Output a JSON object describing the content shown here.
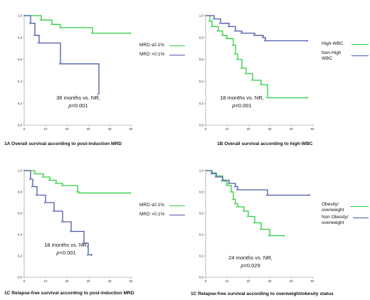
{
  "panels": [
    {
      "caption": "1A Overall survival according to post-induction MRD",
      "annotation": {
        "line1": "36 months vs. NR,",
        "p_label": "p",
        "p_value": "=0.001"
      },
      "legend": [
        {
          "label": "MRD ≤0.1%",
          "color": "#2ecc40"
        },
        {
          "label": "MRD >0.1%",
          "color": "#4a5aa8"
        }
      ]
    },
    {
      "caption": "1B Overall survival according to high-WBC",
      "annotation": {
        "line1": "18 months vs. NR,",
        "p_label": "p",
        "p_value": "=0.001"
      },
      "legend": [
        {
          "label": "High-WBC",
          "color": "#2ecc40"
        },
        {
          "label": "Non-High WBC",
          "color": "#4a5aa8"
        }
      ]
    },
    {
      "caption": "1C Relapse-free survival according to post-induction MRD",
      "annotation": {
        "line1": "18 months vs. NR,",
        "p_label": "p",
        "p_value": "<0.001"
      },
      "legend": [
        {
          "label": "MRD ≤0.1%",
          "color": "#2ecc40"
        },
        {
          "label": "MRD >0.1%",
          "color": "#4a5aa8"
        }
      ]
    },
    {
      "caption": "1C Relapse-free survival according to overweight/obesity status",
      "annotation": {
        "line1": "24 months vs. NR,",
        "p_label": "p",
        "p_value": "=0.029"
      },
      "legend": [
        {
          "label": "Obesity/ overweight",
          "color": "#2ecc40"
        },
        {
          "label": "Non Obesity/ overweight",
          "color": "#4a5aa8"
        }
      ]
    }
  ],
  "chart_data": [
    {
      "type": "line",
      "xlim": [
        0,
        50
      ],
      "ylim": [
        0,
        1.0
      ],
      "x_ticks": [
        "0",
        "10",
        "20",
        "30",
        "40",
        "50"
      ],
      "y_ticks": [
        "0,0",
        "0,2",
        "0,4",
        "0,6",
        "0,8",
        "1,0"
      ],
      "series": [
        {
          "name": "MRD ≤0.1%",
          "color": "#2ecc40",
          "steps": [
            [
              0,
              1.0
            ],
            [
              8,
              0.96
            ],
            [
              13,
              0.92
            ],
            [
              17,
              0.89
            ],
            [
              32,
              0.84
            ],
            [
              50,
              0.84
            ]
          ]
        },
        {
          "name": "MRD >0.1%",
          "color": "#4a5aa8",
          "steps": [
            [
              0,
              1.0
            ],
            [
              3,
              0.93
            ],
            [
              5,
              0.82
            ],
            [
              7,
              0.75
            ],
            [
              17,
              0.56
            ],
            [
              35,
              0.28
            ]
          ]
        }
      ]
    },
    {
      "type": "line",
      "xlim": [
        0,
        50
      ],
      "ylim": [
        0,
        1.0
      ],
      "x_ticks": [
        "0",
        "10",
        "20",
        "30",
        "40",
        "50"
      ],
      "y_ticks": [
        "0,0",
        "0,2",
        "0,4",
        "0,6",
        "0,8",
        "1,0"
      ],
      "series": [
        {
          "name": "High-WBC",
          "color": "#2ecc40",
          "steps": [
            [
              0,
              1.0
            ],
            [
              2,
              0.95
            ],
            [
              3,
              0.9
            ],
            [
              6,
              0.86
            ],
            [
              8,
              0.82
            ],
            [
              10,
              0.79
            ],
            [
              13,
              0.73
            ],
            [
              14,
              0.65
            ],
            [
              15,
              0.6
            ],
            [
              17,
              0.52
            ],
            [
              19,
              0.47
            ],
            [
              22,
              0.41
            ],
            [
              26,
              0.37
            ],
            [
              29,
              0.25
            ],
            [
              48,
              0.25
            ]
          ]
        },
        {
          "name": "Non-High WBC",
          "color": "#4a5aa8",
          "steps": [
            [
              0,
              1.0
            ],
            [
              4,
              0.97
            ],
            [
              7,
              0.93
            ],
            [
              11,
              0.9
            ],
            [
              14,
              0.86
            ],
            [
              17,
              0.84
            ],
            [
              23,
              0.82
            ],
            [
              27,
              0.8
            ],
            [
              28,
              0.77
            ],
            [
              48,
              0.77
            ]
          ]
        }
      ]
    },
    {
      "type": "line",
      "xlim": [
        0,
        50
      ],
      "ylim": [
        0,
        1.0
      ],
      "x_ticks": [
        "0",
        "10",
        "20",
        "30",
        "40",
        "50"
      ],
      "y_ticks": [
        "0,0",
        "0,2",
        "0,4",
        "0,6",
        "0,8",
        "1,0"
      ],
      "series": [
        {
          "name": "MRD ≤0.1%",
          "color": "#2ecc40",
          "steps": [
            [
              0,
              1.0
            ],
            [
              5,
              0.97
            ],
            [
              9,
              0.94
            ],
            [
              12,
              0.91
            ],
            [
              15,
              0.88
            ],
            [
              18,
              0.86
            ],
            [
              25,
              0.8
            ],
            [
              26,
              0.79
            ],
            [
              50,
              0.79
            ]
          ]
        },
        {
          "name": "MRD >0.1%",
          "color": "#4a5aa8",
          "steps": [
            [
              0,
              1.0
            ],
            [
              3,
              0.92
            ],
            [
              4,
              0.85
            ],
            [
              6,
              0.77
            ],
            [
              10,
              0.7
            ],
            [
              14,
              0.62
            ],
            [
              18,
              0.52
            ],
            [
              22,
              0.43
            ],
            [
              28,
              0.32
            ],
            [
              30,
              0.21
            ],
            [
              32,
              0.21
            ]
          ]
        }
      ]
    },
    {
      "type": "line",
      "xlim": [
        0,
        50
      ],
      "ylim": [
        0,
        1.0
      ],
      "x_ticks": [
        "0",
        "10",
        "20",
        "30",
        "40",
        "50"
      ],
      "y_ticks": [
        "0,0",
        "0,2",
        "0,4",
        "0,6",
        "0,8",
        "1,0"
      ],
      "series": [
        {
          "name": "Obesity/ overweight",
          "color": "#2ecc40",
          "steps": [
            [
              0,
              1.0
            ],
            [
              3,
              0.98
            ],
            [
              5,
              0.95
            ],
            [
              8,
              0.9
            ],
            [
              10,
              0.86
            ],
            [
              12,
              0.8
            ],
            [
              13,
              0.73
            ],
            [
              14,
              0.69
            ],
            [
              15,
              0.66
            ],
            [
              18,
              0.62
            ],
            [
              20,
              0.57
            ],
            [
              23,
              0.51
            ],
            [
              26,
              0.45
            ],
            [
              30,
              0.39
            ],
            [
              37,
              0.39
            ]
          ]
        },
        {
          "name": "Non Obesity/ overweight",
          "color": "#4a5aa8",
          "steps": [
            [
              0,
              1.0
            ],
            [
              3,
              0.97
            ],
            [
              5,
              0.94
            ],
            [
              8,
              0.91
            ],
            [
              11,
              0.88
            ],
            [
              14,
              0.85
            ],
            [
              15,
              0.82
            ],
            [
              29,
              0.77
            ],
            [
              49,
              0.77
            ]
          ]
        }
      ]
    }
  ]
}
